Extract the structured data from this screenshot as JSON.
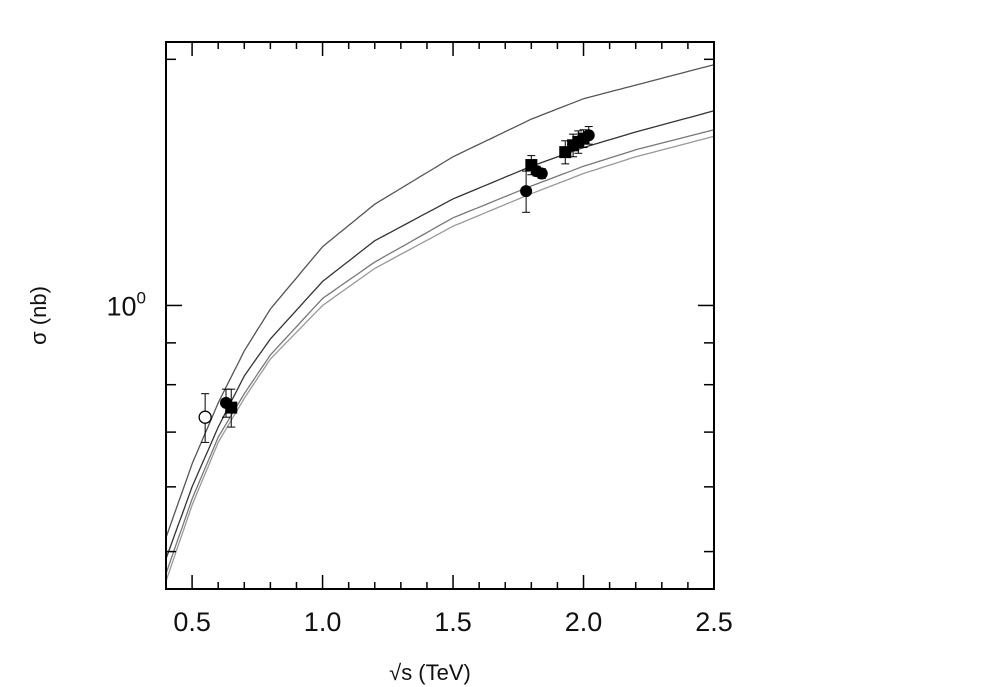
{
  "chart_data": {
    "type": "scatter",
    "title": "",
    "xlabel": "√s (TeV)",
    "ylabel": "σ (nb)",
    "xlim": [
      0.4,
      2.5
    ],
    "ylim": [
      0.45,
      2.1
    ],
    "yscale": "log",
    "x_ticks": [
      "0.5",
      "1.0",
      "1.5",
      "2.0",
      "2.5"
    ],
    "x_tick_values": [
      0.5,
      1.0,
      1.5,
      2.0,
      2.5
    ],
    "y_tick_labels": [
      {
        "base": "10",
        "exp": "0",
        "value": 1.0
      }
    ],
    "grid": false,
    "series": [
      {
        "kind": "curve",
        "color": "#555555",
        "x": [
          0.4,
          0.5,
          0.6,
          0.7,
          0.8,
          1.0,
          1.2,
          1.5,
          1.8,
          2.0,
          2.2,
          2.5
        ],
        "y": [
          0.52,
          0.64,
          0.76,
          0.88,
          0.99,
          1.18,
          1.33,
          1.52,
          1.69,
          1.79,
          1.86,
          1.97
        ]
      },
      {
        "kind": "curve",
        "color": "#333333",
        "x": [
          0.4,
          0.5,
          0.6,
          0.7,
          0.8,
          1.0,
          1.2,
          1.5,
          1.8,
          2.0,
          2.2,
          2.5
        ],
        "y": [
          0.49,
          0.6,
          0.71,
          0.82,
          0.91,
          1.07,
          1.2,
          1.35,
          1.48,
          1.56,
          1.63,
          1.73
        ]
      },
      {
        "kind": "curve",
        "color": "#777777",
        "x": [
          0.4,
          0.5,
          0.6,
          0.7,
          0.8,
          1.0,
          1.2,
          1.5,
          1.8,
          2.0,
          2.2,
          2.5
        ],
        "y": [
          0.47,
          0.58,
          0.69,
          0.78,
          0.87,
          1.02,
          1.13,
          1.28,
          1.4,
          1.48,
          1.55,
          1.64
        ]
      },
      {
        "kind": "curve",
        "color": "#999999",
        "x": [
          0.4,
          0.5,
          0.6,
          0.7,
          0.8,
          1.0,
          1.2,
          1.5,
          1.8,
          2.0,
          2.2,
          2.5
        ],
        "y": [
          0.46,
          0.57,
          0.68,
          0.77,
          0.86,
          1.0,
          1.11,
          1.25,
          1.37,
          1.45,
          1.52,
          1.61
        ]
      },
      {
        "kind": "points",
        "marker": "square",
        "x": [
          0.65,
          1.8,
          1.93,
          1.96,
          1.98,
          2.0
        ],
        "y": [
          0.75,
          1.485,
          1.54,
          1.57,
          1.585,
          1.6
        ],
        "err": [
          0.04,
          0.04,
          0.05,
          0.05,
          0.05,
          0.04
        ]
      },
      {
        "kind": "points",
        "marker": "circle",
        "x": [
          0.63,
          1.78,
          1.82,
          1.84,
          2.02
        ],
        "y": [
          0.76,
          1.38,
          1.46,
          1.45,
          1.615
        ],
        "err": [
          0.03,
          0.08,
          0.02,
          0.02,
          0.04
        ]
      },
      {
        "kind": "points",
        "marker": "open-circle",
        "x": [
          0.55
        ],
        "y": [
          0.73
        ],
        "err": [
          0.05
        ]
      }
    ]
  }
}
